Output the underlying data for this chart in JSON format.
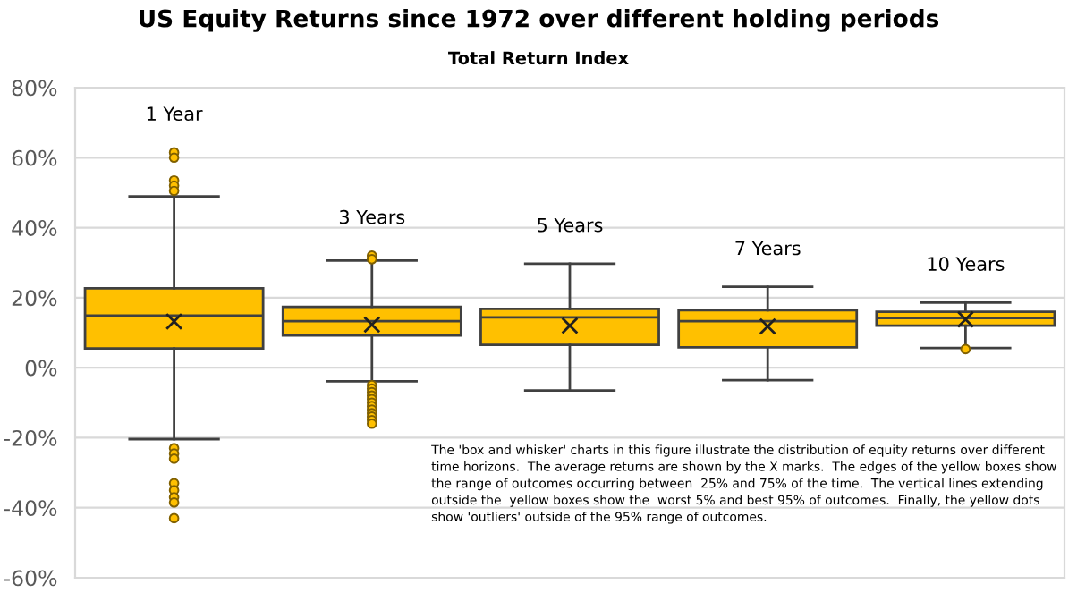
{
  "chart_data": {
    "type": "box",
    "title": "US Equity Returns since 1972 over different holding periods",
    "subtitle": "Total Return Index",
    "categories": [
      "1 Year",
      "3 Years",
      "5 Years",
      "7 Years",
      "10 Years"
    ],
    "boxes": [
      {
        "low": -20.4,
        "q1": 5.5,
        "median": 14.9,
        "q3": 22.7,
        "high": 48.9,
        "mean": 13.2,
        "outliers": [
          61.5,
          60,
          53.5,
          52,
          50.5,
          -23,
          -24.5,
          -26,
          -33,
          -35,
          -37,
          -38.5,
          -43
        ]
      },
      {
        "low": -3.9,
        "q1": 9.2,
        "median": 13.3,
        "q3": 17.4,
        "high": 30.6,
        "mean": 12.3,
        "outliers": [
          32,
          31,
          -5,
          -6,
          -7,
          -8,
          -9,
          -10,
          -11,
          -12,
          -13,
          -14,
          -15,
          -16
        ]
      },
      {
        "low": -6.5,
        "q1": 6.5,
        "median": 14.4,
        "q3": 16.8,
        "high": 29.7,
        "mean": 12.0
      },
      {
        "low": -3.6,
        "q1": 5.8,
        "median": 13.3,
        "q3": 16.4,
        "high": 23.1,
        "mean": 11.8
      },
      {
        "low": 5.6,
        "q1": 12.0,
        "median": 14.2,
        "q3": 16.0,
        "high": 18.6,
        "mean": 13.8,
        "outliers": [
          5.3
        ]
      }
    ],
    "color": "#ffc000",
    "ylim": [
      -60,
      80
    ],
    "yticks": [
      {
        "value": -60,
        "label": "-60%"
      },
      {
        "value": -40,
        "label": "-40%"
      },
      {
        "value": -20,
        "label": "-20%"
      },
      {
        "value": 0,
        "label": "0%"
      },
      {
        "value": 20,
        "label": "20%"
      },
      {
        "value": 40,
        "label": "40%"
      },
      {
        "value": 60,
        "label": "60%"
      },
      {
        "value": 80,
        "label": "80%"
      }
    ],
    "grid": "y",
    "marker": "cross",
    "tick_labels": "y",
    "annotations": [
      "The 'box and whisker' charts in this figure illustrate the distribution of equity returns over different\ntime horizons.  The average returns are shown by the X marks.  The edges of the yellow boxes show\nthe range of outcomes occurring between  25% and 75% of the time.  The vertical lines extending\noutside the  yellow boxes show the  worst 5% and best 95% of outcomes.  Finally, the yellow dots\nshow 'outliers' outside of the 95% range of outcomes."
    ]
  }
}
